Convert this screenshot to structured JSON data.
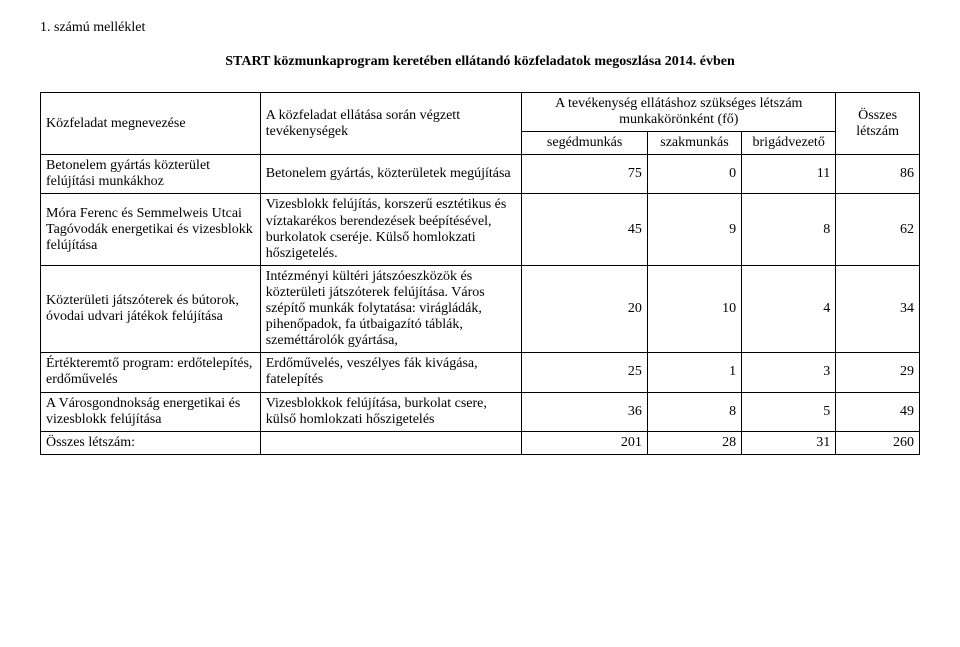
{
  "appendix_label": "1. számú melléklet",
  "title": "START közmunkaprogram keretében ellátandó közfeladatok megoszlása 2014. évben",
  "headers": {
    "task_name": "Közfeladat megnevezése",
    "activities": "A közfeladat ellátása során végzett tevékenységek",
    "group_top": "A tevékenység ellátáshoz szükséges létszám munkakörönként (fő)",
    "seged": "segédmunkás",
    "szak": "szakmunkás",
    "brigad": "brigádvezető",
    "sum": "Összes létszám"
  },
  "rows": [
    {
      "name": "Betonelem gyártás közterület felújítási munkákhoz",
      "activity": "Betonelem gyártás, közterületek megújítása",
      "seged": "75",
      "szak": "0",
      "brigad": "11",
      "sum": "86"
    },
    {
      "name": "Móra Ferenc és Semmelweis Utcai Tagóvodák energetikai és vizesblokk felújítása",
      "activity": "Vizesblokk felújítás, korszerű esztétikus és víztakarékos berendezések beépítésével, burkolatok cseréje. Külső homlokzati hőszigetelés.",
      "seged": "45",
      "szak": "9",
      "brigad": "8",
      "sum": "62"
    },
    {
      "name": "Közterületi játszóterek és bútorok, óvodai udvari játékok felújítása",
      "activity": "Intézményi kültéri játszóeszközök és közterületi játszóterek felújítása. Város szépítő munkák folytatása: virágládák, pihenőpadok, fa útbaigazító táblák, szeméttárolók gyártása,",
      "seged": "20",
      "szak": "10",
      "brigad": "4",
      "sum": "34"
    },
    {
      "name": "Értékteremtő program: erdőtelepítés, erdőművelés",
      "activity": "Erdőművelés, veszélyes fák kivágása, fatelepítés",
      "seged": "25",
      "szak": "1",
      "brigad": "3",
      "sum": "29"
    },
    {
      "name": "A Városgondnokság energetikai és vizesblokk felújítása",
      "activity": "Vizesblokkok felújítása, burkolat csere, külső homlokzati hőszigetelés",
      "seged": "36",
      "szak": "8",
      "brigad": "5",
      "sum": "49"
    }
  ],
  "total": {
    "label": "Összes létszám:",
    "seged": "201",
    "szak": "28",
    "brigad": "31",
    "sum": "260"
  }
}
